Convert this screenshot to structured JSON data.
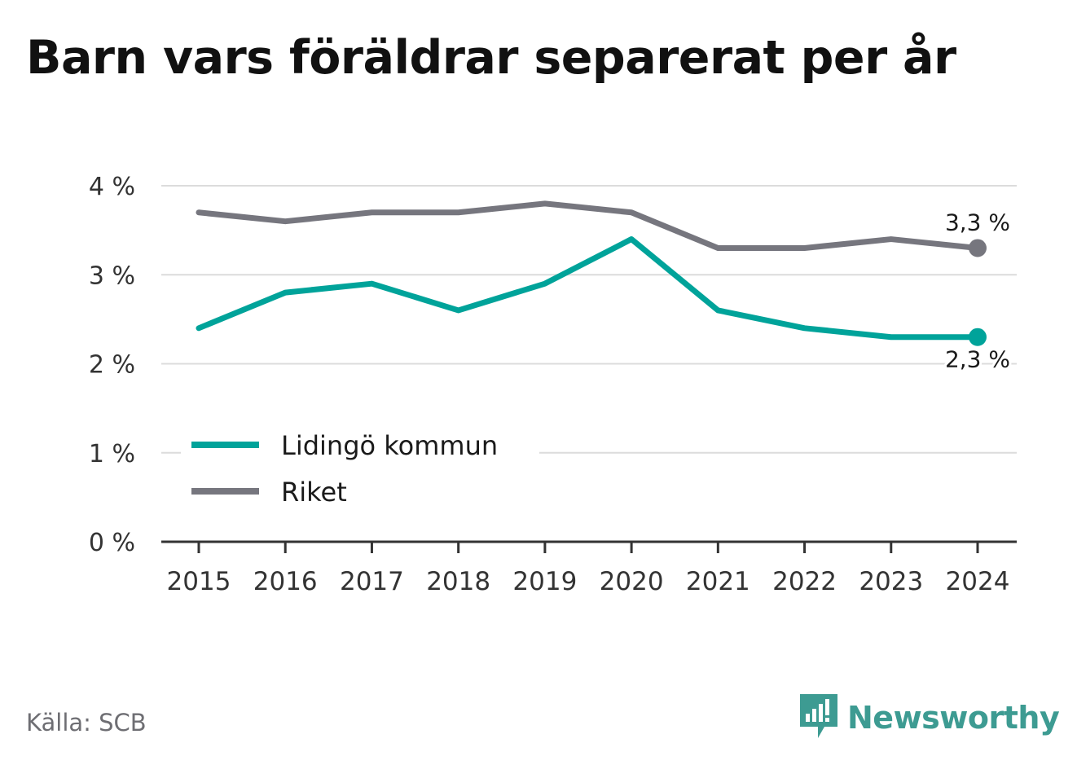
{
  "title": "Barn vars föräldrar separerat per år",
  "source": "Källa: SCB",
  "brand": {
    "name": "Newsworthy",
    "icon": "newsworthy-logo-icon"
  },
  "colors": {
    "lidingo": "#00a39a",
    "riket": "#76767e",
    "grid": "#dcdcdc",
    "axis": "#333333",
    "text": "#333333"
  },
  "chart_data": {
    "type": "line",
    "title": "Barn vars föräldrar separerat per år",
    "x": [
      "2015",
      "2016",
      "2017",
      "2018",
      "2019",
      "2020",
      "2021",
      "2022",
      "2023",
      "2024"
    ],
    "series": [
      {
        "name": "Lidingö kommun",
        "values": [
          2.4,
          2.8,
          2.9,
          2.6,
          2.9,
          3.4,
          2.6,
          2.4,
          2.3,
          2.3
        ],
        "end_label": "2,3 %"
      },
      {
        "name": "Riket",
        "values": [
          3.7,
          3.6,
          3.7,
          3.7,
          3.8,
          3.7,
          3.3,
          3.3,
          3.4,
          3.3
        ],
        "end_label": "3,3 %"
      }
    ],
    "yticks": [
      {
        "value": 0,
        "label": "0 %"
      },
      {
        "value": 1,
        "label": "1 %"
      },
      {
        "value": 2,
        "label": "2 %"
      },
      {
        "value": 3,
        "label": "3 %"
      },
      {
        "value": 4,
        "label": "4 %"
      }
    ],
    "ylim": [
      0,
      4
    ],
    "xlabel": "",
    "ylabel": "",
    "grid": true,
    "legend": "bottom-left"
  }
}
